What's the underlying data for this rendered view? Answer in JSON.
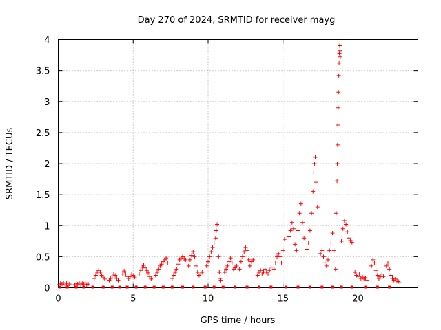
{
  "chart_data": {
    "type": "scatter",
    "title": "Day 270 of 2024, SRMTID for receiver mayg",
    "xlabel": "GPS time / hours",
    "ylabel": "SRMTID / TECUs",
    "xlim": [
      0,
      24
    ],
    "ylim": [
      0,
      4
    ],
    "xticks": [
      0,
      5,
      10,
      15,
      20
    ],
    "yticks": [
      0,
      0.5,
      1,
      1.5,
      2,
      2.5,
      3,
      3.5,
      4
    ],
    "xtick_labels": [
      "0",
      "5",
      "10",
      "15",
      "20"
    ],
    "ytick_labels": [
      "0",
      "0.5",
      "1",
      "1.5",
      "2",
      "2.5",
      "3",
      "3.5",
      "4"
    ],
    "grid": true,
    "marker": "+",
    "series": [
      {
        "name": "SRMTID",
        "color": "#ff0000",
        "points": [
          [
            0.05,
            0.05
          ],
          [
            0.15,
            0.07
          ],
          [
            0.25,
            0.06
          ],
          [
            0.35,
            0.08
          ],
          [
            0.45,
            0.05
          ],
          [
            0.55,
            0.07
          ],
          [
            0.65,
            0.04
          ],
          [
            0.75,
            0.06
          ],
          [
            1.1,
            0.05
          ],
          [
            1.2,
            0.07
          ],
          [
            1.3,
            0.06
          ],
          [
            1.4,
            0.08
          ],
          [
            1.5,
            0.05
          ],
          [
            1.6,
            0.07
          ],
          [
            1.7,
            0.06
          ],
          [
            1.8,
            0.08
          ],
          [
            1.9,
            0.05
          ],
          [
            2.0,
            0.06
          ],
          [
            2.4,
            0.15
          ],
          [
            2.5,
            0.2
          ],
          [
            2.6,
            0.25
          ],
          [
            2.7,
            0.28
          ],
          [
            2.8,
            0.25
          ],
          [
            2.9,
            0.2
          ],
          [
            3.0,
            0.17
          ],
          [
            3.1,
            0.14
          ],
          [
            3.4,
            0.12
          ],
          [
            3.5,
            0.15
          ],
          [
            3.6,
            0.19
          ],
          [
            3.7,
            0.22
          ],
          [
            3.8,
            0.2
          ],
          [
            3.9,
            0.15
          ],
          [
            4.0,
            0.12
          ],
          [
            4.3,
            0.22
          ],
          [
            4.4,
            0.27
          ],
          [
            4.5,
            0.22
          ],
          [
            4.6,
            0.18
          ],
          [
            4.7,
            0.15
          ],
          [
            4.8,
            0.18
          ],
          [
            4.9,
            0.22
          ],
          [
            5.0,
            0.2
          ],
          [
            5.1,
            0.17
          ],
          [
            5.4,
            0.22
          ],
          [
            5.5,
            0.28
          ],
          [
            5.6,
            0.33
          ],
          [
            5.7,
            0.36
          ],
          [
            5.8,
            0.32
          ],
          [
            5.9,
            0.28
          ],
          [
            6.0,
            0.24
          ],
          [
            6.1,
            0.18
          ],
          [
            6.2,
            0.14
          ],
          [
            6.5,
            0.2
          ],
          [
            6.6,
            0.25
          ],
          [
            6.7,
            0.3
          ],
          [
            6.8,
            0.35
          ],
          [
            6.9,
            0.38
          ],
          [
            7.0,
            0.42
          ],
          [
            7.1,
            0.45
          ],
          [
            7.2,
            0.48
          ],
          [
            7.3,
            0.4
          ],
          [
            7.6,
            0.15
          ],
          [
            7.7,
            0.2
          ],
          [
            7.8,
            0.25
          ],
          [
            7.9,
            0.3
          ],
          [
            8.0,
            0.38
          ],
          [
            8.1,
            0.45
          ],
          [
            8.2,
            0.48
          ],
          [
            8.3,
            0.5
          ],
          [
            8.4,
            0.47
          ],
          [
            8.5,
            0.45
          ],
          [
            8.7,
            0.35
          ],
          [
            8.8,
            0.45
          ],
          [
            8.9,
            0.52
          ],
          [
            9.0,
            0.58
          ],
          [
            9.1,
            0.5
          ],
          [
            9.2,
            0.35
          ],
          [
            9.3,
            0.25
          ],
          [
            9.4,
            0.2
          ],
          [
            9.5,
            0.22
          ],
          [
            9.6,
            0.25
          ],
          [
            9.9,
            0.35
          ],
          [
            10.0,
            0.42
          ],
          [
            10.1,
            0.5
          ],
          [
            10.2,
            0.58
          ],
          [
            10.3,
            0.65
          ],
          [
            10.4,
            0.72
          ],
          [
            10.5,
            0.8
          ],
          [
            10.55,
            0.92
          ],
          [
            10.6,
            1.02
          ],
          [
            10.7,
            0.5
          ],
          [
            10.75,
            0.25
          ],
          [
            10.8,
            0.15
          ],
          [
            10.85,
            0.12
          ],
          [
            11.1,
            0.25
          ],
          [
            11.2,
            0.3
          ],
          [
            11.3,
            0.35
          ],
          [
            11.4,
            0.42
          ],
          [
            11.5,
            0.48
          ],
          [
            11.6,
            0.4
          ],
          [
            11.7,
            0.3
          ],
          [
            11.8,
            0.32
          ],
          [
            11.9,
            0.35
          ],
          [
            12.1,
            0.3
          ],
          [
            12.2,
            0.42
          ],
          [
            12.3,
            0.5
          ],
          [
            12.4,
            0.58
          ],
          [
            12.5,
            0.65
          ],
          [
            12.6,
            0.6
          ],
          [
            12.7,
            0.45
          ],
          [
            12.8,
            0.35
          ],
          [
            12.9,
            0.42
          ],
          [
            13.0,
            0.45
          ],
          [
            13.3,
            0.2
          ],
          [
            13.4,
            0.25
          ],
          [
            13.5,
            0.28
          ],
          [
            13.6,
            0.22
          ],
          [
            13.7,
            0.25
          ],
          [
            13.8,
            0.3
          ],
          [
            13.9,
            0.25
          ],
          [
            14.0,
            0.22
          ],
          [
            14.1,
            0.28
          ],
          [
            14.2,
            0.33
          ],
          [
            14.4,
            0.3
          ],
          [
            14.5,
            0.4
          ],
          [
            14.6,
            0.5
          ],
          [
            14.7,
            0.55
          ],
          [
            14.8,
            0.5
          ],
          [
            14.9,
            0.4
          ],
          [
            15.0,
            0.6
          ],
          [
            15.1,
            0.78
          ],
          [
            15.4,
            0.82
          ],
          [
            15.5,
            0.92
          ],
          [
            15.6,
            1.05
          ],
          [
            15.7,
            0.95
          ],
          [
            15.8,
            0.7
          ],
          [
            15.9,
            0.6
          ],
          [
            16.0,
            0.92
          ],
          [
            16.1,
            1.2
          ],
          [
            16.2,
            1.35
          ],
          [
            16.3,
            1.05
          ],
          [
            16.4,
            0.8
          ],
          [
            16.6,
            0.62
          ],
          [
            16.7,
            0.72
          ],
          [
            16.8,
            0.92
          ],
          [
            16.9,
            1.2
          ],
          [
            17.0,
            1.55
          ],
          [
            17.05,
            1.85
          ],
          [
            17.1,
            2.0
          ],
          [
            17.15,
            2.1
          ],
          [
            17.2,
            1.7
          ],
          [
            17.3,
            1.3
          ],
          [
            17.5,
            0.55
          ],
          [
            17.6,
            0.6
          ],
          [
            17.7,
            0.5
          ],
          [
            17.8,
            0.4
          ],
          [
            17.9,
            0.35
          ],
          [
            18.0,
            0.45
          ],
          [
            18.1,
            0.6
          ],
          [
            18.2,
            0.72
          ],
          [
            18.3,
            0.88
          ],
          [
            18.4,
            0.6
          ],
          [
            18.5,
            0.3
          ],
          [
            18.55,
            1.2
          ],
          [
            18.6,
            1.72
          ],
          [
            18.62,
            2.0
          ],
          [
            18.64,
            2.3
          ],
          [
            18.66,
            2.62
          ],
          [
            18.68,
            2.9
          ],
          [
            18.7,
            3.15
          ],
          [
            18.72,
            3.42
          ],
          [
            18.74,
            3.62
          ],
          [
            18.76,
            3.78
          ],
          [
            18.78,
            3.9
          ],
          [
            18.8,
            3.82
          ],
          [
            18.82,
            3.72
          ],
          [
            18.9,
            0.75
          ],
          [
            19.0,
            0.95
          ],
          [
            19.1,
            1.08
          ],
          [
            19.2,
            1.02
          ],
          [
            19.3,
            0.9
          ],
          [
            19.4,
            0.8
          ],
          [
            19.5,
            0.76
          ],
          [
            19.6,
            0.73
          ],
          [
            19.8,
            0.25
          ],
          [
            19.9,
            0.2
          ],
          [
            20.0,
            0.18
          ],
          [
            20.1,
            0.22
          ],
          [
            20.2,
            0.15
          ],
          [
            20.3,
            0.17
          ],
          [
            20.4,
            0.14
          ],
          [
            20.5,
            0.16
          ],
          [
            20.6,
            0.12
          ],
          [
            20.9,
            0.35
          ],
          [
            21.0,
            0.45
          ],
          [
            21.1,
            0.4
          ],
          [
            21.2,
            0.28
          ],
          [
            21.3,
            0.2
          ],
          [
            21.4,
            0.15
          ],
          [
            21.5,
            0.18
          ],
          [
            21.6,
            0.22
          ],
          [
            21.7,
            0.18
          ],
          [
            21.9,
            0.35
          ],
          [
            22.0,
            0.4
          ],
          [
            22.1,
            0.3
          ],
          [
            22.2,
            0.2
          ],
          [
            22.3,
            0.15
          ],
          [
            22.4,
            0.12
          ],
          [
            22.5,
            0.14
          ],
          [
            22.6,
            0.11
          ],
          [
            22.7,
            0.1
          ],
          [
            22.8,
            0.08
          ]
        ]
      },
      {
        "name": "baseline",
        "color": "#ff0000",
        "marker": "square",
        "points": [
          [
            0.1,
            0
          ],
          [
            0.6,
            0
          ],
          [
            1.2,
            0
          ],
          [
            1.7,
            0
          ],
          [
            2.3,
            0
          ],
          [
            3.0,
            0
          ],
          [
            3.6,
            0
          ],
          [
            4.1,
            0
          ],
          [
            4.6,
            0
          ],
          [
            5.2,
            0
          ],
          [
            5.8,
            0
          ],
          [
            6.4,
            0
          ],
          [
            7.0,
            0
          ],
          [
            7.6,
            0
          ],
          [
            8.3,
            0
          ],
          [
            9.0,
            0
          ],
          [
            9.8,
            0
          ],
          [
            10.4,
            0
          ],
          [
            11.0,
            0
          ],
          [
            11.8,
            0
          ],
          [
            12.6,
            0
          ],
          [
            13.4,
            0
          ],
          [
            14.2,
            0
          ],
          [
            15.2,
            0
          ],
          [
            16.0,
            0
          ],
          [
            16.8,
            0
          ],
          [
            17.6,
            0
          ],
          [
            18.3,
            0
          ],
          [
            18.9,
            0
          ],
          [
            19.6,
            0
          ],
          [
            20.5,
            0
          ],
          [
            21.3,
            0
          ],
          [
            22.1,
            0
          ]
        ]
      }
    ]
  }
}
